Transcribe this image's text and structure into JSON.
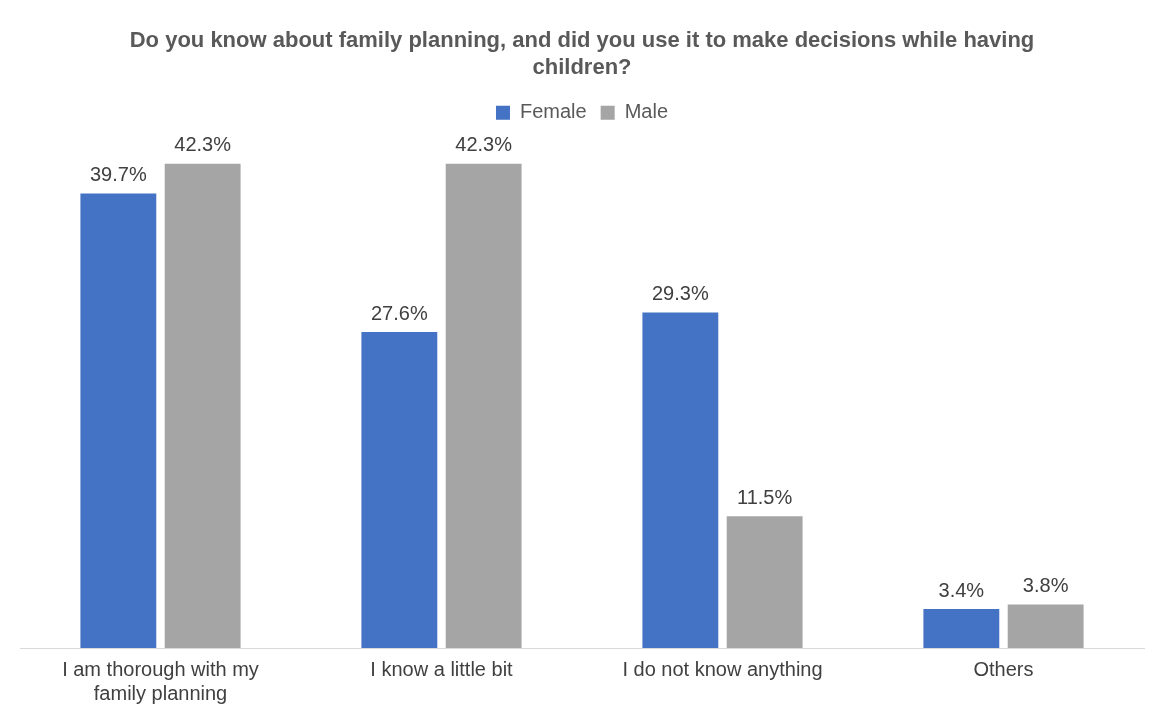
{
  "chart_data": {
    "type": "bar",
    "title": "Do you know about family planning, and did you use it to make decisions while having children?",
    "categories": [
      "I am thorough with my family planning",
      "I know a little bit",
      "I do not know anything",
      "Others"
    ],
    "series": [
      {
        "name": "Female",
        "color": "#4472c4",
        "values": [
          39.7,
          27.6,
          29.3,
          3.4
        ],
        "value_labels": [
          "39.7%",
          "27.6%",
          "29.3%",
          "3.4%"
        ]
      },
      {
        "name": "Male",
        "color": "#a5a5a5",
        "values": [
          42.3,
          42.3,
          11.5,
          3.8
        ],
        "value_labels": [
          "42.3%",
          "42.3%",
          "11.5%",
          "3.8%"
        ]
      }
    ],
    "legend": "top",
    "grid": false
  }
}
